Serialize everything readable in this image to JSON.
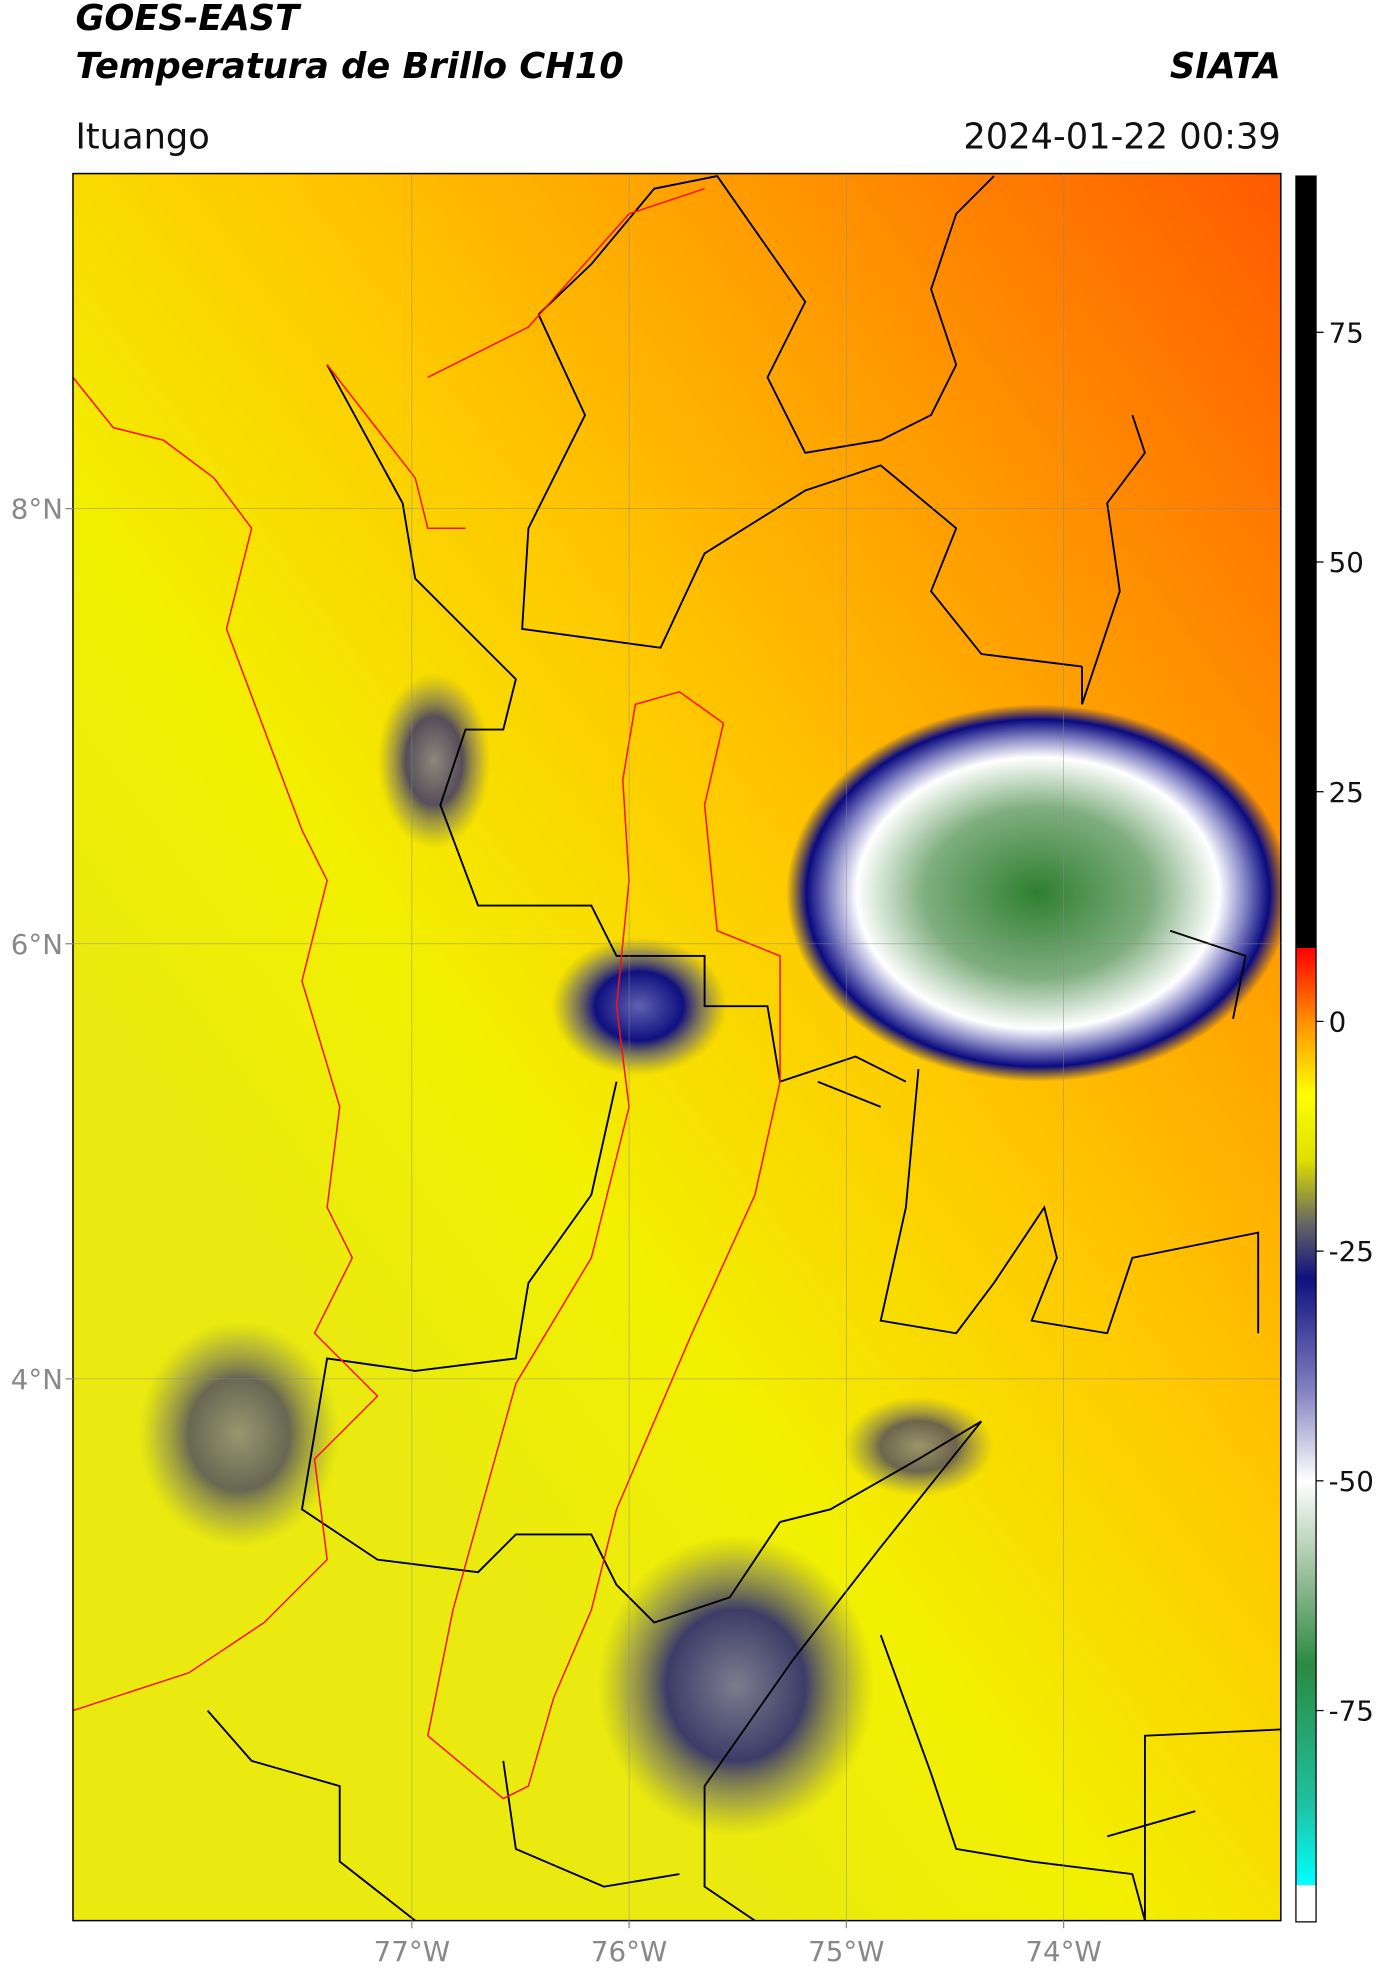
{
  "header": {
    "title": "GOES-EAST",
    "subtitle": "Temperatura de Brillo CH10",
    "agency": "SIATA",
    "location": "Ituango",
    "datetime": "2024-01-22 00:39"
  },
  "map": {
    "xlim": [
      -78.56,
      -73.0
    ],
    "ylim": [
      1.51,
      9.54
    ],
    "xticks": [
      {
        "value": -77,
        "label": "77°W"
      },
      {
        "value": -76,
        "label": "76°W"
      },
      {
        "value": -75,
        "label": "75°W"
      },
      {
        "value": -74,
        "label": "74°W"
      }
    ],
    "yticks": [
      {
        "value": 8,
        "label": "8°N"
      },
      {
        "value": 6,
        "label": "6°N"
      },
      {
        "value": 4,
        "label": "4°N"
      }
    ],
    "grid": true
  },
  "colorbar": {
    "lim": [
      -98,
      92
    ],
    "ticks": [
      75,
      50,
      25,
      0,
      -25,
      -50,
      -75
    ],
    "stops": [
      {
        "value": -98,
        "color": "#ffffff"
      },
      {
        "value": -94,
        "color": "#ffffff"
      },
      {
        "value": -94,
        "color": "#00ffff"
      },
      {
        "value": -85,
        "color": "#20c0a0"
      },
      {
        "value": -70,
        "color": "#2a8a40"
      },
      {
        "value": -60,
        "color": "#9cc09c"
      },
      {
        "value": -50,
        "color": "#ffffff"
      },
      {
        "value": -40,
        "color": "#8080c0"
      },
      {
        "value": -28,
        "color": "#101080"
      },
      {
        "value": -22,
        "color": "#666666"
      },
      {
        "value": -15,
        "color": "#e0e000"
      },
      {
        "value": -8,
        "color": "#ffff00"
      },
      {
        "value": 0,
        "color": "#ff9000"
      },
      {
        "value": 8,
        "color": "#ff0000"
      },
      {
        "value": 8,
        "color": "#000000"
      },
      {
        "value": 92,
        "color": "#000000"
      }
    ]
  }
}
